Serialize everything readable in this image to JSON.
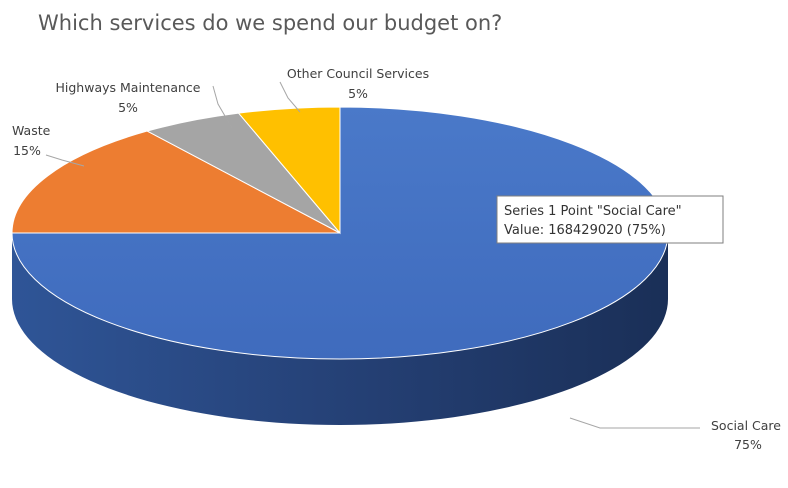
{
  "chart_data": {
    "type": "pie",
    "title": "Which services do we spend our budget on?",
    "categories": [
      "Social Care",
      "Waste",
      "Highways Maintenance",
      "Other Council Services"
    ],
    "series": [
      {
        "name": "Series 1",
        "values": [
          75,
          15,
          5,
          5
        ],
        "labels": [
          "75%",
          "15%",
          "5%",
          "5%"
        ]
      }
    ],
    "colors": [
      "#4472C4",
      "#ED7D31",
      "#A5A5A5",
      "#FFC000"
    ],
    "tooltip": {
      "line1": "Series 1 Point \"Social Care\"",
      "line2": "Value: 168429020 (75%)"
    }
  }
}
